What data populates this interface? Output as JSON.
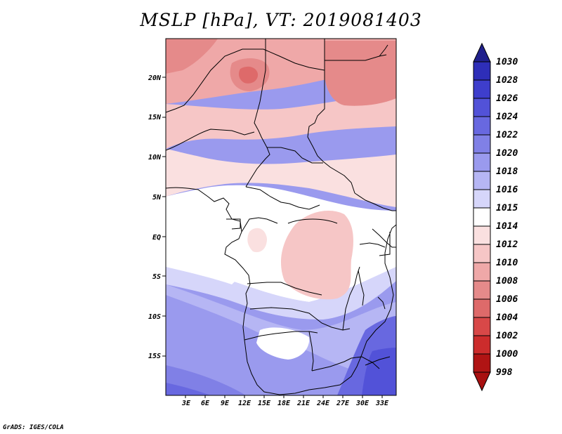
{
  "title": "MSLP [hPa], VT: 2019081403",
  "credit": "GrADS: IGES/COLA",
  "map": {
    "variable": "MSLP",
    "units": "hPa",
    "valid_time": "2019081403",
    "lon_range": [
      0,
      36
    ],
    "lat_range": [
      -20,
      25
    ],
    "x_ticks": [
      "3E",
      "6E",
      "9E",
      "12E",
      "15E",
      "18E",
      "21E",
      "24E",
      "27E",
      "30E",
      "33E"
    ],
    "y_ticks": [
      "20N",
      "15N",
      "10N",
      "5N",
      "EQ",
      "5S",
      "10S",
      "15S"
    ]
  },
  "colorbar": {
    "labels": [
      "1030",
      "1028",
      "1026",
      "1024",
      "1022",
      "1020",
      "1018",
      "1016",
      "1015",
      "1014",
      "1012",
      "1010",
      "1008",
      "1006",
      "1004",
      "1002",
      "1000",
      "998"
    ],
    "colors": [
      "#222298",
      "#2e2eb8",
      "#3e3ecc",
      "#5252d8",
      "#6868e0",
      "#8080e6",
      "#9a9aee",
      "#b6b6f4",
      "#d6d6fa",
      "#ffffff",
      "#fae0e0",
      "#f6c6c6",
      "#efa8a8",
      "#e58a8a",
      "#de6a6a",
      "#d84848",
      "#cc2c2c",
      "#b01414"
    ],
    "top_arrow_color": "#20208c",
    "bottom_arrow_color": "#a81010"
  }
}
